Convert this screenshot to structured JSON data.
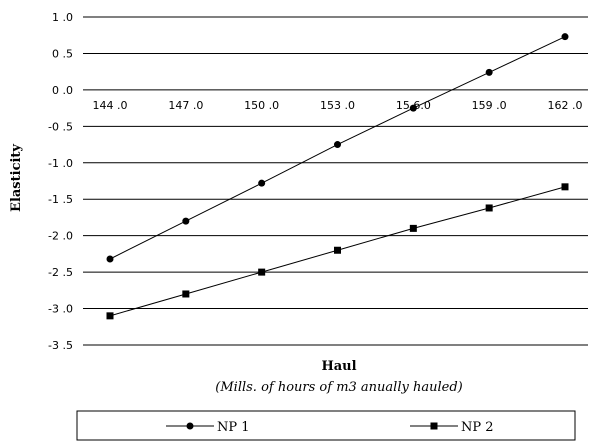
{
  "chart_data": {
    "type": "line",
    "xlabel": "Haul",
    "xlabel_note": "(Mills. of hours of m3 anually hauled)",
    "ylabel": "Elasticity",
    "categories": [
      "144.0",
      "147.0",
      "150.0",
      "153.0",
      "156.0",
      "159.0",
      "162.0"
    ],
    "x_tick_labels": [
      "144 .0",
      "147 .0",
      "150 .0",
      "153 .0",
      "15 6.0",
      "159 .0",
      "162 .0"
    ],
    "y_ticks": [
      1.0,
      0.5,
      0.0,
      -0.5,
      -1.0,
      -1.5,
      -2.0,
      -2.5,
      -3.0,
      -3.5
    ],
    "y_tick_labels": [
      "1 .0",
      "0 .5",
      "0 .0",
      "-0 .5",
      "-1 .0",
      "-1 .5",
      "-2 .0",
      "-2 .5",
      "-3 .0",
      "-3 .5"
    ],
    "ylim": [
      -3.5,
      1.0
    ],
    "grid": true,
    "legend_position": "bottom",
    "series": [
      {
        "name": "NP 1",
        "marker": "circle",
        "color": "#000000",
        "values": [
          -2.32,
          -1.8,
          -1.28,
          -0.75,
          -0.25,
          0.24,
          0.73
        ]
      },
      {
        "name": "NP 2",
        "marker": "square",
        "color": "#000000",
        "values": [
          -3.1,
          -2.8,
          -2.5,
          -2.2,
          -1.9,
          -1.62,
          -1.33
        ]
      }
    ]
  }
}
